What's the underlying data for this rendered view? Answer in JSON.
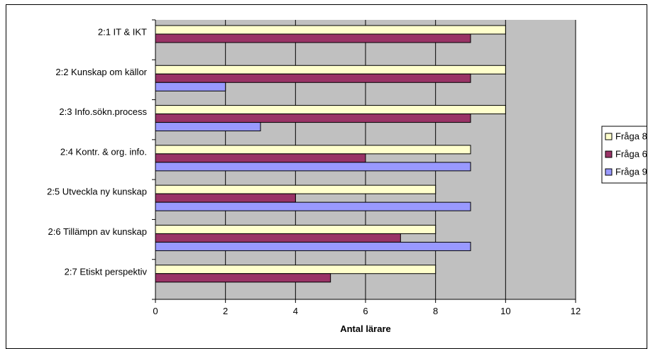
{
  "chart_data": {
    "type": "bar",
    "orientation": "horizontal",
    "title": "",
    "xlabel": "Antal lärare",
    "ylabel": "",
    "xlim": [
      0,
      12
    ],
    "x_ticks": [
      0,
      2,
      4,
      6,
      8,
      10,
      12
    ],
    "grid": true,
    "legend_position": "right",
    "categories": [
      "2:1 IT & IKT",
      "2:2 Kunskap om källor",
      "2:3 Info.sökn.process",
      "2:4 Kontr. & org. info.",
      "2:5 Utveckla ny kunskap",
      "2:6 Tillämpn av kunskap",
      "2:7 Etiskt perspektiv"
    ],
    "series": [
      {
        "name": "Fråga 8",
        "color": "#FFFFCC",
        "values": [
          10,
          10,
          10,
          9,
          8,
          8,
          8
        ]
      },
      {
        "name": "Fråga 6",
        "color": "#993366",
        "values": [
          9,
          9,
          9,
          6,
          4,
          7,
          5
        ]
      },
      {
        "name": "Fråga 9",
        "color": "#9999FF",
        "values": [
          0,
          2,
          3,
          9,
          9,
          9,
          0
        ]
      }
    ],
    "colors": {
      "plot_background": "#C0C0C0",
      "gridline": "#000000"
    }
  }
}
